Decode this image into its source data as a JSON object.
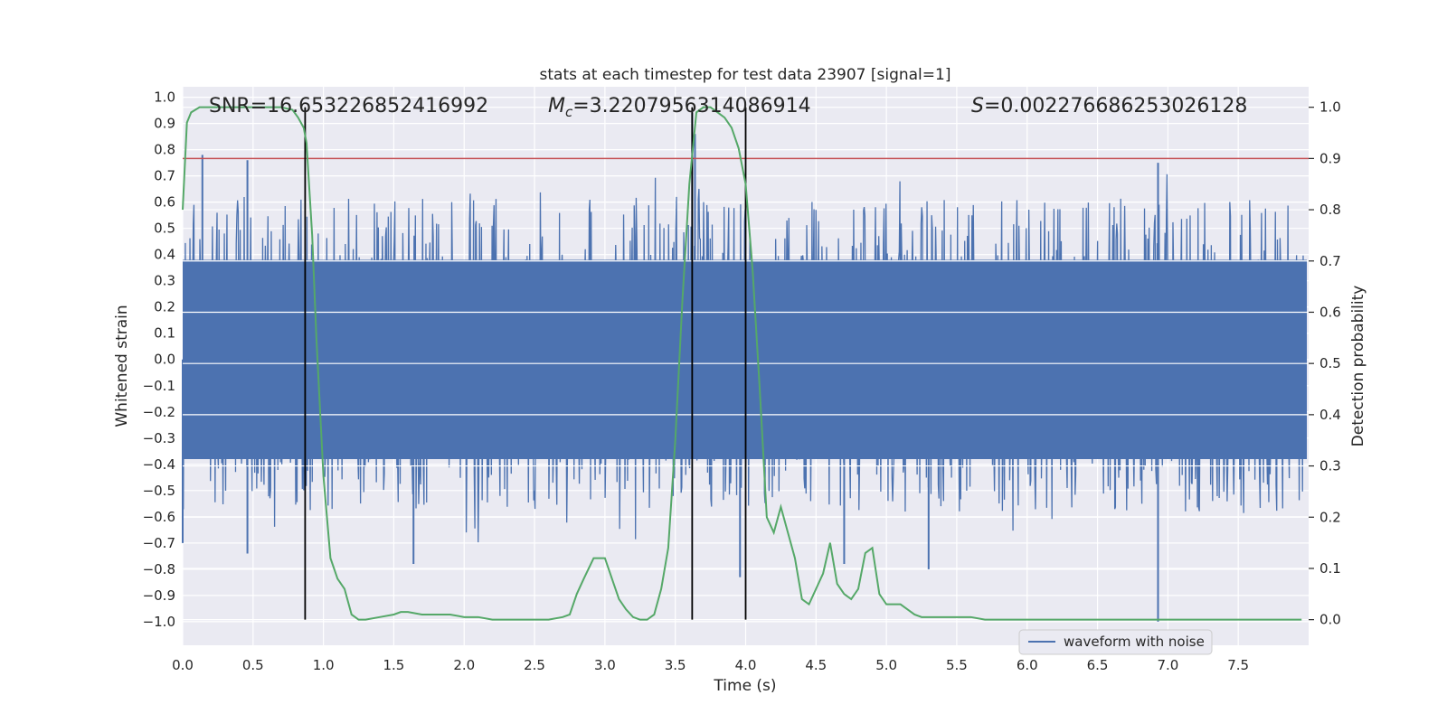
{
  "chart_data": {
    "type": "line",
    "title": "stats at each timestep for test data 23907 [signal=1]",
    "xlabel": "Time (s)",
    "ylabel_left": "Whitened strain",
    "ylabel_right": "Detection probability",
    "xlim": [
      0.0,
      8.0
    ],
    "ylim_left": [
      -1.09,
      1.04
    ],
    "ylim_right": [
      -0.05,
      1.04
    ],
    "x_ticks": [
      0.0,
      0.5,
      1.0,
      1.5,
      2.0,
      2.5,
      3.0,
      3.5,
      4.0,
      4.5,
      5.0,
      5.5,
      6.0,
      6.5,
      7.0,
      7.5
    ],
    "x_tick_labels": [
      "0.0",
      "0.5",
      "1.0",
      "1.5",
      "2.0",
      "2.5",
      "3.0",
      "3.5",
      "4.0",
      "4.5",
      "5.0",
      "5.5",
      "6.0",
      "6.5",
      "7.0",
      "7.5"
    ],
    "y_left_ticks": [
      1.0,
      0.9,
      0.8,
      0.7,
      0.6,
      0.5,
      0.4,
      0.3,
      0.2,
      0.1,
      0.0,
      -0.1,
      -0.2,
      -0.3,
      -0.4,
      -0.5,
      -0.6,
      -0.7,
      -0.8,
      -0.9,
      -1.0
    ],
    "y_left_tick_labels": [
      "1.0",
      "0.9",
      "0.8",
      "0.7",
      "0.6",
      "0.5",
      "0.4",
      "0.3",
      "0.2",
      "0.1",
      "0.0",
      "−0.1",
      "−0.2",
      "−0.3",
      "−0.4",
      "−0.5",
      "−0.6",
      "−0.7",
      "−0.8",
      "−0.9",
      "−1.0"
    ],
    "y_right_ticks": [
      1.0,
      0.9,
      0.8,
      0.7,
      0.6,
      0.5,
      0.4,
      0.3,
      0.2,
      0.1,
      0.0
    ],
    "y_right_tick_labels": [
      "1.0",
      "0.9",
      "0.8",
      "0.7",
      "0.6",
      "0.5",
      "0.4",
      "0.3",
      "0.2",
      "0.1",
      "0.0"
    ],
    "grid": true,
    "annotations": {
      "snr": "SNR=16.653226852416992",
      "mc_symbol": "M",
      "mc_subscript": "c",
      "mc_value": "=3.2207956314086914",
      "s_symbol": "S",
      "s_value": "=0.002276686253026128"
    },
    "threshold": {
      "axis": "right",
      "value": 0.9,
      "color": "#c44e52"
    },
    "vertical_markers": [
      0.87,
      3.62,
      4.0
    ],
    "series": [
      {
        "name": "waveform with noise",
        "axis": "left",
        "color": "#4c72b0",
        "description_values": {
          "core_low": -0.38,
          "core_high": 0.38,
          "min": -1.0,
          "max": 0.94
        },
        "notable_spikes": [
          {
            "x": 0.0,
            "y": -0.7
          },
          {
            "x": 0.14,
            "y": 0.78
          },
          {
            "x": 0.46,
            "y": 0.76
          },
          {
            "x": 0.46,
            "y": -0.74
          },
          {
            "x": 1.64,
            "y": -0.78
          },
          {
            "x": 3.62,
            "y": 0.94
          },
          {
            "x": 3.64,
            "y": 0.86
          },
          {
            "x": 3.96,
            "y": -0.83
          },
          {
            "x": 4.7,
            "y": -0.78
          },
          {
            "x": 5.3,
            "y": -0.8
          },
          {
            "x": 6.93,
            "y": 0.75
          },
          {
            "x": 6.93,
            "y": -1.0
          }
        ]
      },
      {
        "name": "",
        "axis": "right",
        "color": "#55a868",
        "x": [
          0.0,
          0.03,
          0.06,
          0.12,
          0.2,
          0.3,
          0.4,
          0.5,
          0.6,
          0.7,
          0.78,
          0.82,
          0.86,
          0.88,
          0.92,
          0.95,
          1.0,
          1.05,
          1.1,
          1.15,
          1.2,
          1.25,
          1.3,
          1.4,
          1.5,
          1.55,
          1.6,
          1.7,
          1.8,
          1.9,
          2.0,
          2.1,
          2.2,
          2.3,
          2.4,
          2.5,
          2.6,
          2.7,
          2.75,
          2.8,
          2.85,
          2.92,
          3.0,
          3.05,
          3.1,
          3.15,
          3.2,
          3.25,
          3.3,
          3.35,
          3.4,
          3.45,
          3.5,
          3.55,
          3.6,
          3.65,
          3.7,
          3.75,
          3.8,
          3.85,
          3.9,
          3.95,
          4.0,
          4.05,
          4.1,
          4.15,
          4.2,
          4.25,
          4.3,
          4.35,
          4.4,
          4.45,
          4.5,
          4.55,
          4.6,
          4.65,
          4.7,
          4.75,
          4.8,
          4.85,
          4.9,
          4.95,
          5.0,
          5.05,
          5.1,
          5.15,
          5.2,
          5.25,
          5.3,
          5.4,
          5.5,
          5.6,
          5.7,
          5.8,
          5.9,
          6.0,
          6.2,
          6.4,
          6.6,
          6.8,
          7.0,
          7.2,
          7.4,
          7.6,
          7.8,
          7.95
        ],
        "y": [
          0.8,
          0.97,
          0.99,
          1.0,
          1.0,
          1.0,
          1.0,
          1.0,
          1.0,
          1.0,
          0.995,
          0.98,
          0.96,
          0.93,
          0.75,
          0.55,
          0.28,
          0.12,
          0.08,
          0.06,
          0.01,
          0.0,
          0.0,
          0.005,
          0.01,
          0.015,
          0.015,
          0.01,
          0.01,
          0.01,
          0.005,
          0.005,
          0.0,
          0.0,
          0.0,
          0.0,
          0.0,
          0.005,
          0.01,
          0.05,
          0.08,
          0.12,
          0.12,
          0.08,
          0.04,
          0.02,
          0.005,
          0.0,
          0.0,
          0.01,
          0.06,
          0.14,
          0.35,
          0.62,
          0.85,
          0.99,
          1.0,
          1.0,
          0.99,
          0.98,
          0.96,
          0.92,
          0.85,
          0.68,
          0.45,
          0.2,
          0.17,
          0.22,
          0.17,
          0.12,
          0.04,
          0.03,
          0.06,
          0.09,
          0.15,
          0.07,
          0.05,
          0.04,
          0.06,
          0.13,
          0.14,
          0.05,
          0.03,
          0.03,
          0.03,
          0.02,
          0.01,
          0.005,
          0.005,
          0.005,
          0.005,
          0.005,
          0.0,
          0.0,
          0.0,
          0.0,
          0.0,
          0.0,
          0.0,
          0.0,
          0.0,
          0.0,
          0.0,
          0.0,
          0.0,
          0.0
        ]
      }
    ],
    "legend": {
      "entries": [
        "waveform with noise"
      ],
      "placement": "lower-right"
    }
  }
}
